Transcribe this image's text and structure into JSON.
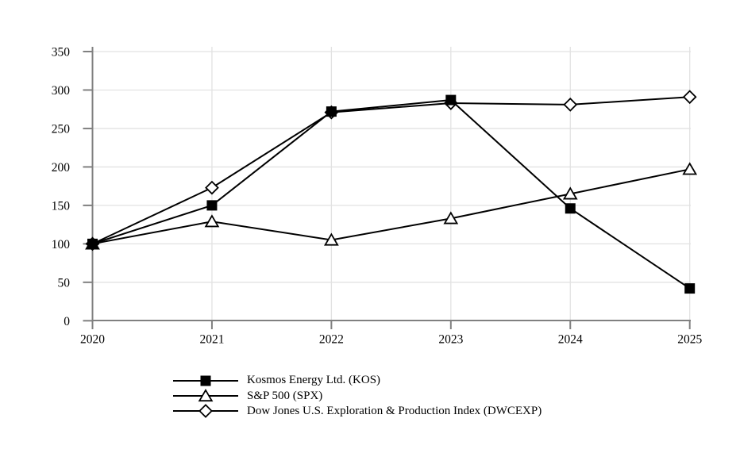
{
  "chart_data": {
    "type": "line",
    "title": "",
    "xlabel": "",
    "ylabel": "",
    "x": [
      2020,
      2021,
      2022,
      2023,
      2024,
      2025
    ],
    "x_tick_labels": [
      "2020",
      "2021",
      "2022",
      "2023",
      "2024",
      "2025"
    ],
    "y_ticks": [
      0,
      50,
      100,
      150,
      200,
      250,
      300,
      350
    ],
    "y_tick_labels": [
      "0",
      "50",
      "100",
      "150",
      "200",
      "250",
      "300",
      "350"
    ],
    "ylim": [
      0,
      350
    ],
    "grid": true,
    "legend_position": "bottom-left",
    "series": [
      {
        "name": "Kosmos Energy Ltd. (KOS)",
        "marker": "filled-square",
        "values": [
          100,
          150,
          272,
          287,
          146,
          42
        ]
      },
      {
        "name": "S&P 500 (SPX)",
        "marker": "open-triangle",
        "values": [
          100,
          129,
          105,
          133,
          165,
          197
        ]
      },
      {
        "name": "Dow Jones U.S. Exploration & Production Index (DWCEXP)",
        "marker": "open-diamond",
        "values": [
          100,
          173,
          271,
          283,
          281,
          291
        ]
      }
    ],
    "colors": {
      "line": "#000000",
      "marker_fill": "#ffffff",
      "axis": "#808080",
      "grid": "#e2e2e2",
      "text": "#000000",
      "background": "#ffffff"
    }
  }
}
